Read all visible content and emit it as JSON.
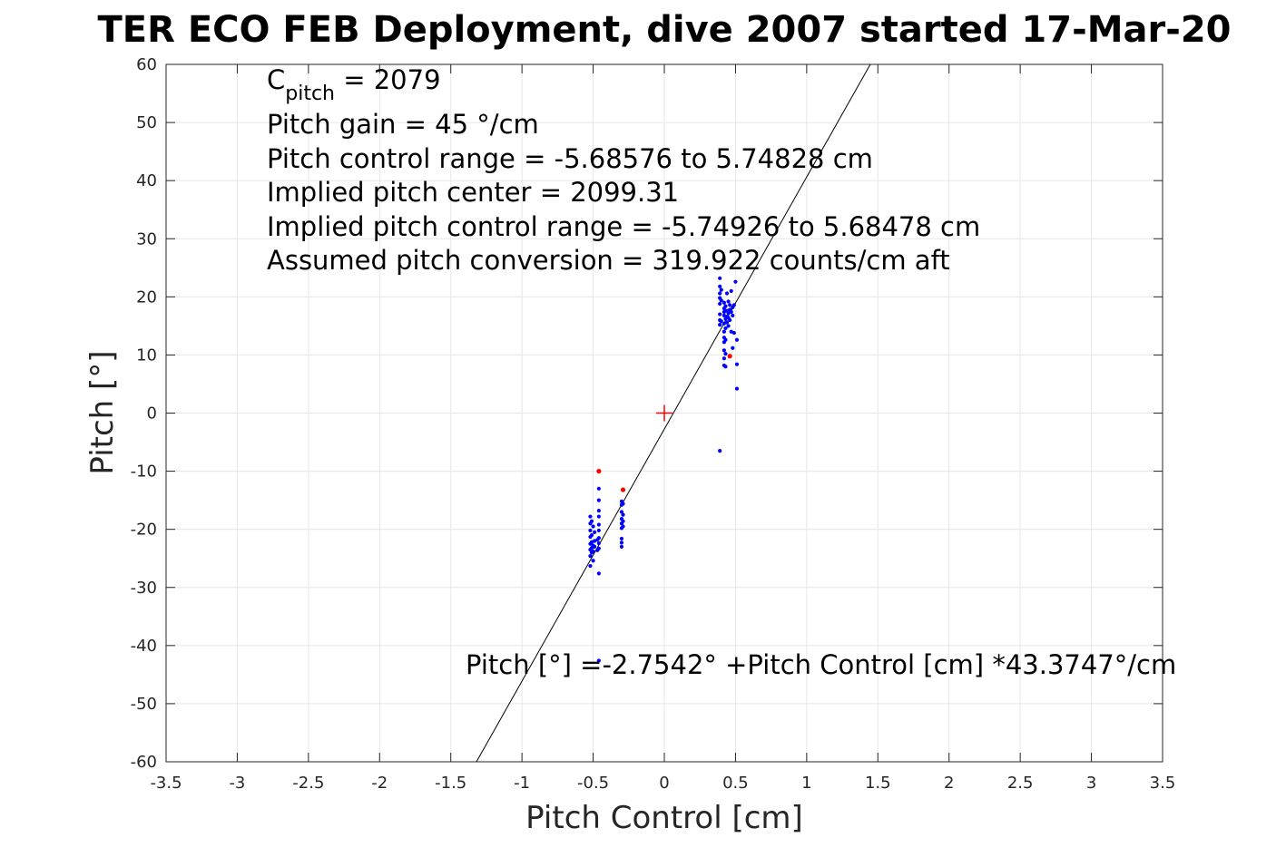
{
  "chart_data": {
    "type": "scatter",
    "title": "TER ECO FEB Deployment, dive 2007 started 17-Mar-20",
    "xlabel": "Pitch Control [cm]",
    "ylabel": "Pitch [°]",
    "xlim": [
      -3.5,
      3.5
    ],
    "ylim": [
      -60,
      60
    ],
    "x_ticks": [
      "-3.5",
      "-3",
      "-2.5",
      "-2",
      "-1.5",
      "-1",
      "-0.5",
      "0",
      "0.5",
      "1",
      "1.5",
      "2",
      "2.5",
      "3",
      "3.5"
    ],
    "y_ticks": [
      "-60",
      "-50",
      "-40",
      "-30",
      "-20",
      "-10",
      "0",
      "10",
      "20",
      "30",
      "40",
      "50",
      "60"
    ],
    "grid": true,
    "colors": {
      "good_points": "#0000ff",
      "flagged_points": "#ff0000",
      "fit_line": "#000000",
      "center_marker": "#ff0000",
      "grid": "#e6e6e6"
    },
    "annotations": {
      "c_pitch_base": "C",
      "c_pitch_sub": "pitch",
      "c_pitch_value": " = 2079",
      "lines": [
        "Pitch gain = 45 °/cm",
        "Pitch control range = -5.68576 to 5.74828 cm",
        "Implied pitch center = 2099.31",
        "Implied pitch control range = -5.74926 to 5.68478 cm",
        "Assumed pitch conversion = 319.922 counts/cm aft"
      ],
      "fit_equation": "Pitch [°] =-2.7542° +Pitch Control [cm] *43.3747°/cm"
    },
    "fit_line": {
      "intercept": -2.7542,
      "slope": 43.3747
    },
    "center_marker": {
      "x": 0,
      "y": 0
    },
    "series": [
      {
        "kind": "good",
        "points": [
          [
            -0.52,
            -17.8
          ],
          [
            -0.52,
            -19.0
          ],
          [
            -0.52,
            -20.2
          ],
          [
            -0.52,
            -21.3
          ],
          [
            -0.52,
            -22.5
          ],
          [
            -0.52,
            -23.5
          ],
          [
            -0.52,
            -24.6
          ],
          [
            -0.52,
            -26.3
          ],
          [
            -0.51,
            -18.6
          ],
          [
            -0.51,
            -21.0
          ],
          [
            -0.51,
            -22.2
          ],
          [
            -0.51,
            -23.2
          ],
          [
            -0.51,
            -24.0
          ],
          [
            -0.5,
            -19.5
          ],
          [
            -0.5,
            -22.8
          ],
          [
            -0.5,
            -23.8
          ],
          [
            -0.5,
            -25.4
          ],
          [
            -0.49,
            -20.5
          ],
          [
            -0.49,
            -22.0
          ],
          [
            -0.49,
            -23.0
          ],
          [
            -0.47,
            -21.8
          ],
          [
            -0.47,
            -23.6
          ],
          [
            -0.46,
            -13.0
          ],
          [
            -0.46,
            -15.0
          ],
          [
            -0.46,
            -16.8
          ],
          [
            -0.46,
            -17.8
          ],
          [
            -0.46,
            -19.2
          ],
          [
            -0.46,
            -20.2
          ],
          [
            -0.46,
            -21.5
          ],
          [
            -0.46,
            -22.4
          ],
          [
            -0.46,
            -23.3
          ],
          [
            -0.46,
            -27.6
          ],
          [
            -0.46,
            -42.6
          ],
          [
            -0.3,
            -15.2
          ],
          [
            -0.3,
            -15.8
          ],
          [
            -0.3,
            -17.0
          ],
          [
            -0.3,
            -18.2
          ],
          [
            -0.3,
            -19.0
          ],
          [
            -0.3,
            -19.8
          ],
          [
            -0.3,
            -21.6
          ],
          [
            -0.3,
            -22.3
          ],
          [
            -0.3,
            -23.0
          ],
          [
            -0.29,
            -15.6
          ],
          [
            -0.29,
            -17.5
          ],
          [
            -0.29,
            -18.6
          ],
          [
            -0.29,
            -19.5
          ],
          [
            0.39,
            23.2
          ],
          [
            0.39,
            21.8
          ],
          [
            0.39,
            20.6
          ],
          [
            0.39,
            19.8
          ],
          [
            0.39,
            18.8
          ],
          [
            0.39,
            17.0
          ],
          [
            0.39,
            16.0
          ],
          [
            0.39,
            15.2
          ],
          [
            0.39,
            -6.5
          ],
          [
            0.4,
            21.2
          ],
          [
            0.4,
            19.4
          ],
          [
            0.4,
            15.8
          ],
          [
            0.42,
            19.0
          ],
          [
            0.42,
            18.0
          ],
          [
            0.42,
            17.4
          ],
          [
            0.42,
            16.8
          ],
          [
            0.42,
            15.4
          ],
          [
            0.42,
            14.0
          ],
          [
            0.42,
            13.0
          ],
          [
            0.42,
            12.2
          ],
          [
            0.42,
            10.8
          ],
          [
            0.42,
            9.4
          ],
          [
            0.42,
            8.2
          ],
          [
            0.43,
            18.4
          ],
          [
            0.43,
            16.2
          ],
          [
            0.43,
            14.6
          ],
          [
            0.43,
            12.6
          ],
          [
            0.43,
            10.2
          ],
          [
            0.43,
            8.0
          ],
          [
            0.44,
            20.6
          ],
          [
            0.44,
            17.6
          ],
          [
            0.44,
            16.6
          ],
          [
            0.44,
            15.6
          ],
          [
            0.45,
            19.2
          ],
          [
            0.45,
            17.2
          ],
          [
            0.45,
            16.4
          ],
          [
            0.45,
            15.0
          ],
          [
            0.46,
            18.6
          ],
          [
            0.46,
            17.8
          ],
          [
            0.46,
            16.0
          ],
          [
            0.47,
            21.0
          ],
          [
            0.47,
            17.4
          ],
          [
            0.47,
            14.0
          ],
          [
            0.48,
            18.2
          ],
          [
            0.48,
            16.8
          ],
          [
            0.48,
            11.2
          ],
          [
            0.49,
            18.6
          ],
          [
            0.49,
            13.8
          ],
          [
            0.5,
            22.6
          ],
          [
            0.51,
            12.6
          ],
          [
            0.51,
            8.4
          ],
          [
            0.51,
            4.2
          ]
        ]
      },
      {
        "kind": "flagged",
        "points": [
          [
            -0.46,
            -10.0
          ],
          [
            -0.29,
            -13.2
          ],
          [
            0.46,
            9.8
          ]
        ]
      }
    ]
  }
}
